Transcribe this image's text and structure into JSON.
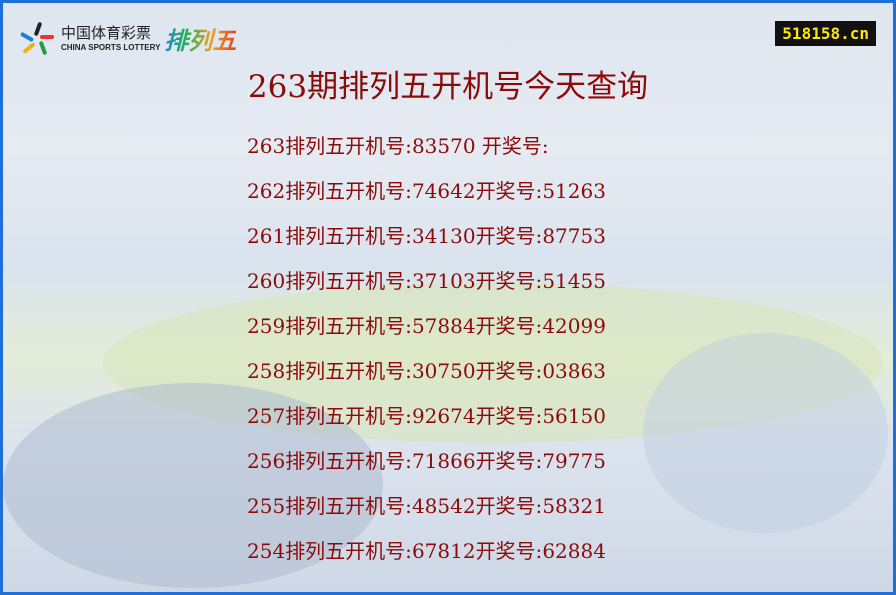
{
  "header": {
    "logo_cn": "中国体育彩票",
    "logo_en": "CHINA SPORTS LOTTERY",
    "logo_brand": "排列五",
    "site": "518158.cn"
  },
  "title": "263期排列五开机号今天查询",
  "rows": [
    {
      "issue": "263",
      "label": "排列五开机号:",
      "machine": "83570",
      "sep": " ",
      "prize_label": "开奖号:",
      "prize": ""
    },
    {
      "issue": "262",
      "label": "排列五开机号:",
      "machine": "74642",
      "sep": "",
      "prize_label": "开奖号:",
      "prize": "51263"
    },
    {
      "issue": "261",
      "label": "排列五开机号:",
      "machine": "34130",
      "sep": "",
      "prize_label": "开奖号:",
      "prize": "87753"
    },
    {
      "issue": "260",
      "label": "排列五开机号:",
      "machine": "37103",
      "sep": "",
      "prize_label": "开奖号:",
      "prize": "51455"
    },
    {
      "issue": "259",
      "label": "排列五开机号:",
      "machine": "57884",
      "sep": "",
      "prize_label": "开奖号:",
      "prize": "42099"
    },
    {
      "issue": "258",
      "label": "排列五开机号:",
      "machine": "30750",
      "sep": "",
      "prize_label": "开奖号:",
      "prize": "03863"
    },
    {
      "issue": "257",
      "label": "排列五开机号:",
      "machine": "92674",
      "sep": "",
      "prize_label": "开奖号:",
      "prize": "56150"
    },
    {
      "issue": "256",
      "label": "排列五开机号:",
      "machine": "71866",
      "sep": "",
      "prize_label": "开奖号:",
      "prize": "79775"
    },
    {
      "issue": "255",
      "label": "排列五开机号:",
      "machine": "48542",
      "sep": "",
      "prize_label": "开奖号:",
      "prize": "58321"
    },
    {
      "issue": "254",
      "label": "排列五开机号:",
      "machine": "67812",
      "sep": "",
      "prize_label": "开奖号:",
      "prize": "62884"
    }
  ],
  "colors": {
    "text": "#8b0a0a",
    "border": "#1e6fd9",
    "badge_bg": "#111111",
    "badge_text": "#ffe800"
  }
}
